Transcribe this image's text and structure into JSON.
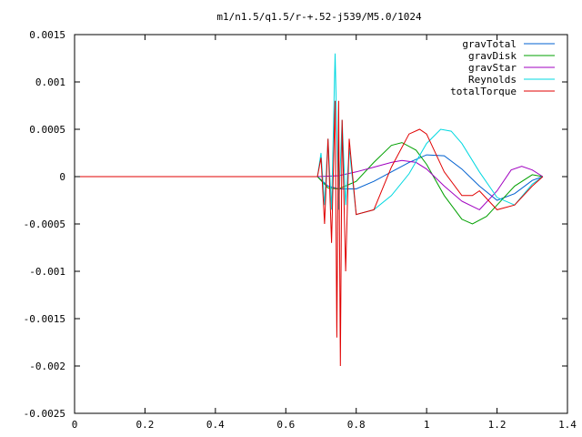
{
  "chart_data": {
    "type": "line",
    "title": "m1/n1.5/q1.5/r-+.52-j539/M5.0/1024",
    "xlabel": "",
    "ylabel": "",
    "xlim": [
      0,
      1.4
    ],
    "ylim": [
      -0.0025,
      0.0015
    ],
    "x_ticks": [
      0,
      0.2,
      0.4,
      0.6,
      0.8,
      1,
      1.2,
      1.4
    ],
    "x_tick_labels": [
      "0",
      "0.2",
      "0.4",
      "0.6",
      "0.8",
      "1",
      "1.2",
      "1.4"
    ],
    "y_ticks": [
      -0.0025,
      -0.002,
      -0.0015,
      -0.001,
      -0.0005,
      0,
      0.0005,
      0.001,
      0.0015
    ],
    "y_tick_labels": [
      "-0.0025",
      "-0.002",
      "-0.0015",
      "-0.001",
      "-0.0005",
      "0",
      "0.0005",
      "0.001",
      "0.0015"
    ],
    "grid": false,
    "legend_position": "top-right",
    "series": [
      {
        "name": "gravTotal",
        "color": "#0060d0",
        "x": [
          0,
          0.69,
          0.72,
          0.75,
          0.8,
          0.85,
          0.9,
          0.95,
          1.0,
          1.05,
          1.1,
          1.15,
          1.2,
          1.25,
          1.3,
          1.33
        ],
        "y": [
          0,
          0,
          -0.0001,
          -0.00013,
          -0.00013,
          -5e-05,
          5e-05,
          0.00015,
          0.00023,
          0.00022,
          8e-05,
          -0.0001,
          -0.00025,
          -0.00018,
          -4e-05,
          0
        ]
      },
      {
        "name": "gravDisk",
        "color": "#00a000",
        "x": [
          0,
          0.69,
          0.72,
          0.75,
          0.8,
          0.85,
          0.9,
          0.93,
          0.97,
          1.0,
          1.05,
          1.1,
          1.13,
          1.17,
          1.2,
          1.25,
          1.3,
          1.33
        ],
        "y": [
          0,
          0,
          -0.00012,
          -0.00013,
          -5e-05,
          0.00015,
          0.00033,
          0.00036,
          0.00028,
          0.00013,
          -0.0002,
          -0.00045,
          -0.0005,
          -0.00042,
          -0.0003,
          -0.0001,
          2e-05,
          0
        ]
      },
      {
        "name": "gravStar",
        "color": "#a000c0",
        "x": [
          0,
          0.69,
          0.75,
          0.8,
          0.85,
          0.9,
          0.93,
          0.97,
          1.0,
          1.05,
          1.1,
          1.15,
          1.2,
          1.24,
          1.27,
          1.3,
          1.33
        ],
        "y": [
          0,
          0,
          1e-05,
          5e-05,
          0.0001,
          0.00015,
          0.00017,
          0.00015,
          8e-05,
          -0.0001,
          -0.00026,
          -0.00035,
          -0.00015,
          7e-05,
          0.00011,
          7e-05,
          0
        ]
      },
      {
        "name": "Reynolds",
        "color": "#00d8e0",
        "x": [
          0,
          0.69,
          0.7,
          0.71,
          0.72,
          0.73,
          0.74,
          0.75,
          0.76,
          0.77,
          0.78,
          0.8,
          0.85,
          0.9,
          0.95,
          1.0,
          1.04,
          1.07,
          1.1,
          1.15,
          1.2,
          1.25,
          1.3,
          1.33
        ],
        "y": [
          0,
          0,
          0.00025,
          -0.0003,
          0.0004,
          -0.00035,
          0.0013,
          -0.00035,
          0.0006,
          -0.0003,
          0.0003,
          -0.0004,
          -0.00035,
          -0.0002,
          3e-05,
          0.00035,
          0.0005,
          0.00048,
          0.00035,
          5e-05,
          -0.00022,
          -0.0003,
          -8e-05,
          0
        ]
      },
      {
        "name": "totalTorque",
        "color": "#e00000",
        "x": [
          0,
          0.69,
          0.7,
          0.71,
          0.72,
          0.73,
          0.74,
          0.745,
          0.75,
          0.755,
          0.76,
          0.77,
          0.78,
          0.8,
          0.85,
          0.9,
          0.95,
          0.98,
          1.0,
          1.05,
          1.1,
          1.13,
          1.15,
          1.2,
          1.25,
          1.3,
          1.33
        ],
        "y": [
          0,
          0,
          0.0002,
          -0.0005,
          0.0004,
          -0.0007,
          0.0008,
          -0.0017,
          0.0008,
          -0.002,
          0.0006,
          -0.001,
          0.0004,
          -0.0004,
          -0.00035,
          0.0001,
          0.00045,
          0.0005,
          0.00045,
          5e-05,
          -0.0002,
          -0.0002,
          -0.00015,
          -0.00035,
          -0.0003,
          -0.0001,
          0
        ]
      }
    ]
  }
}
